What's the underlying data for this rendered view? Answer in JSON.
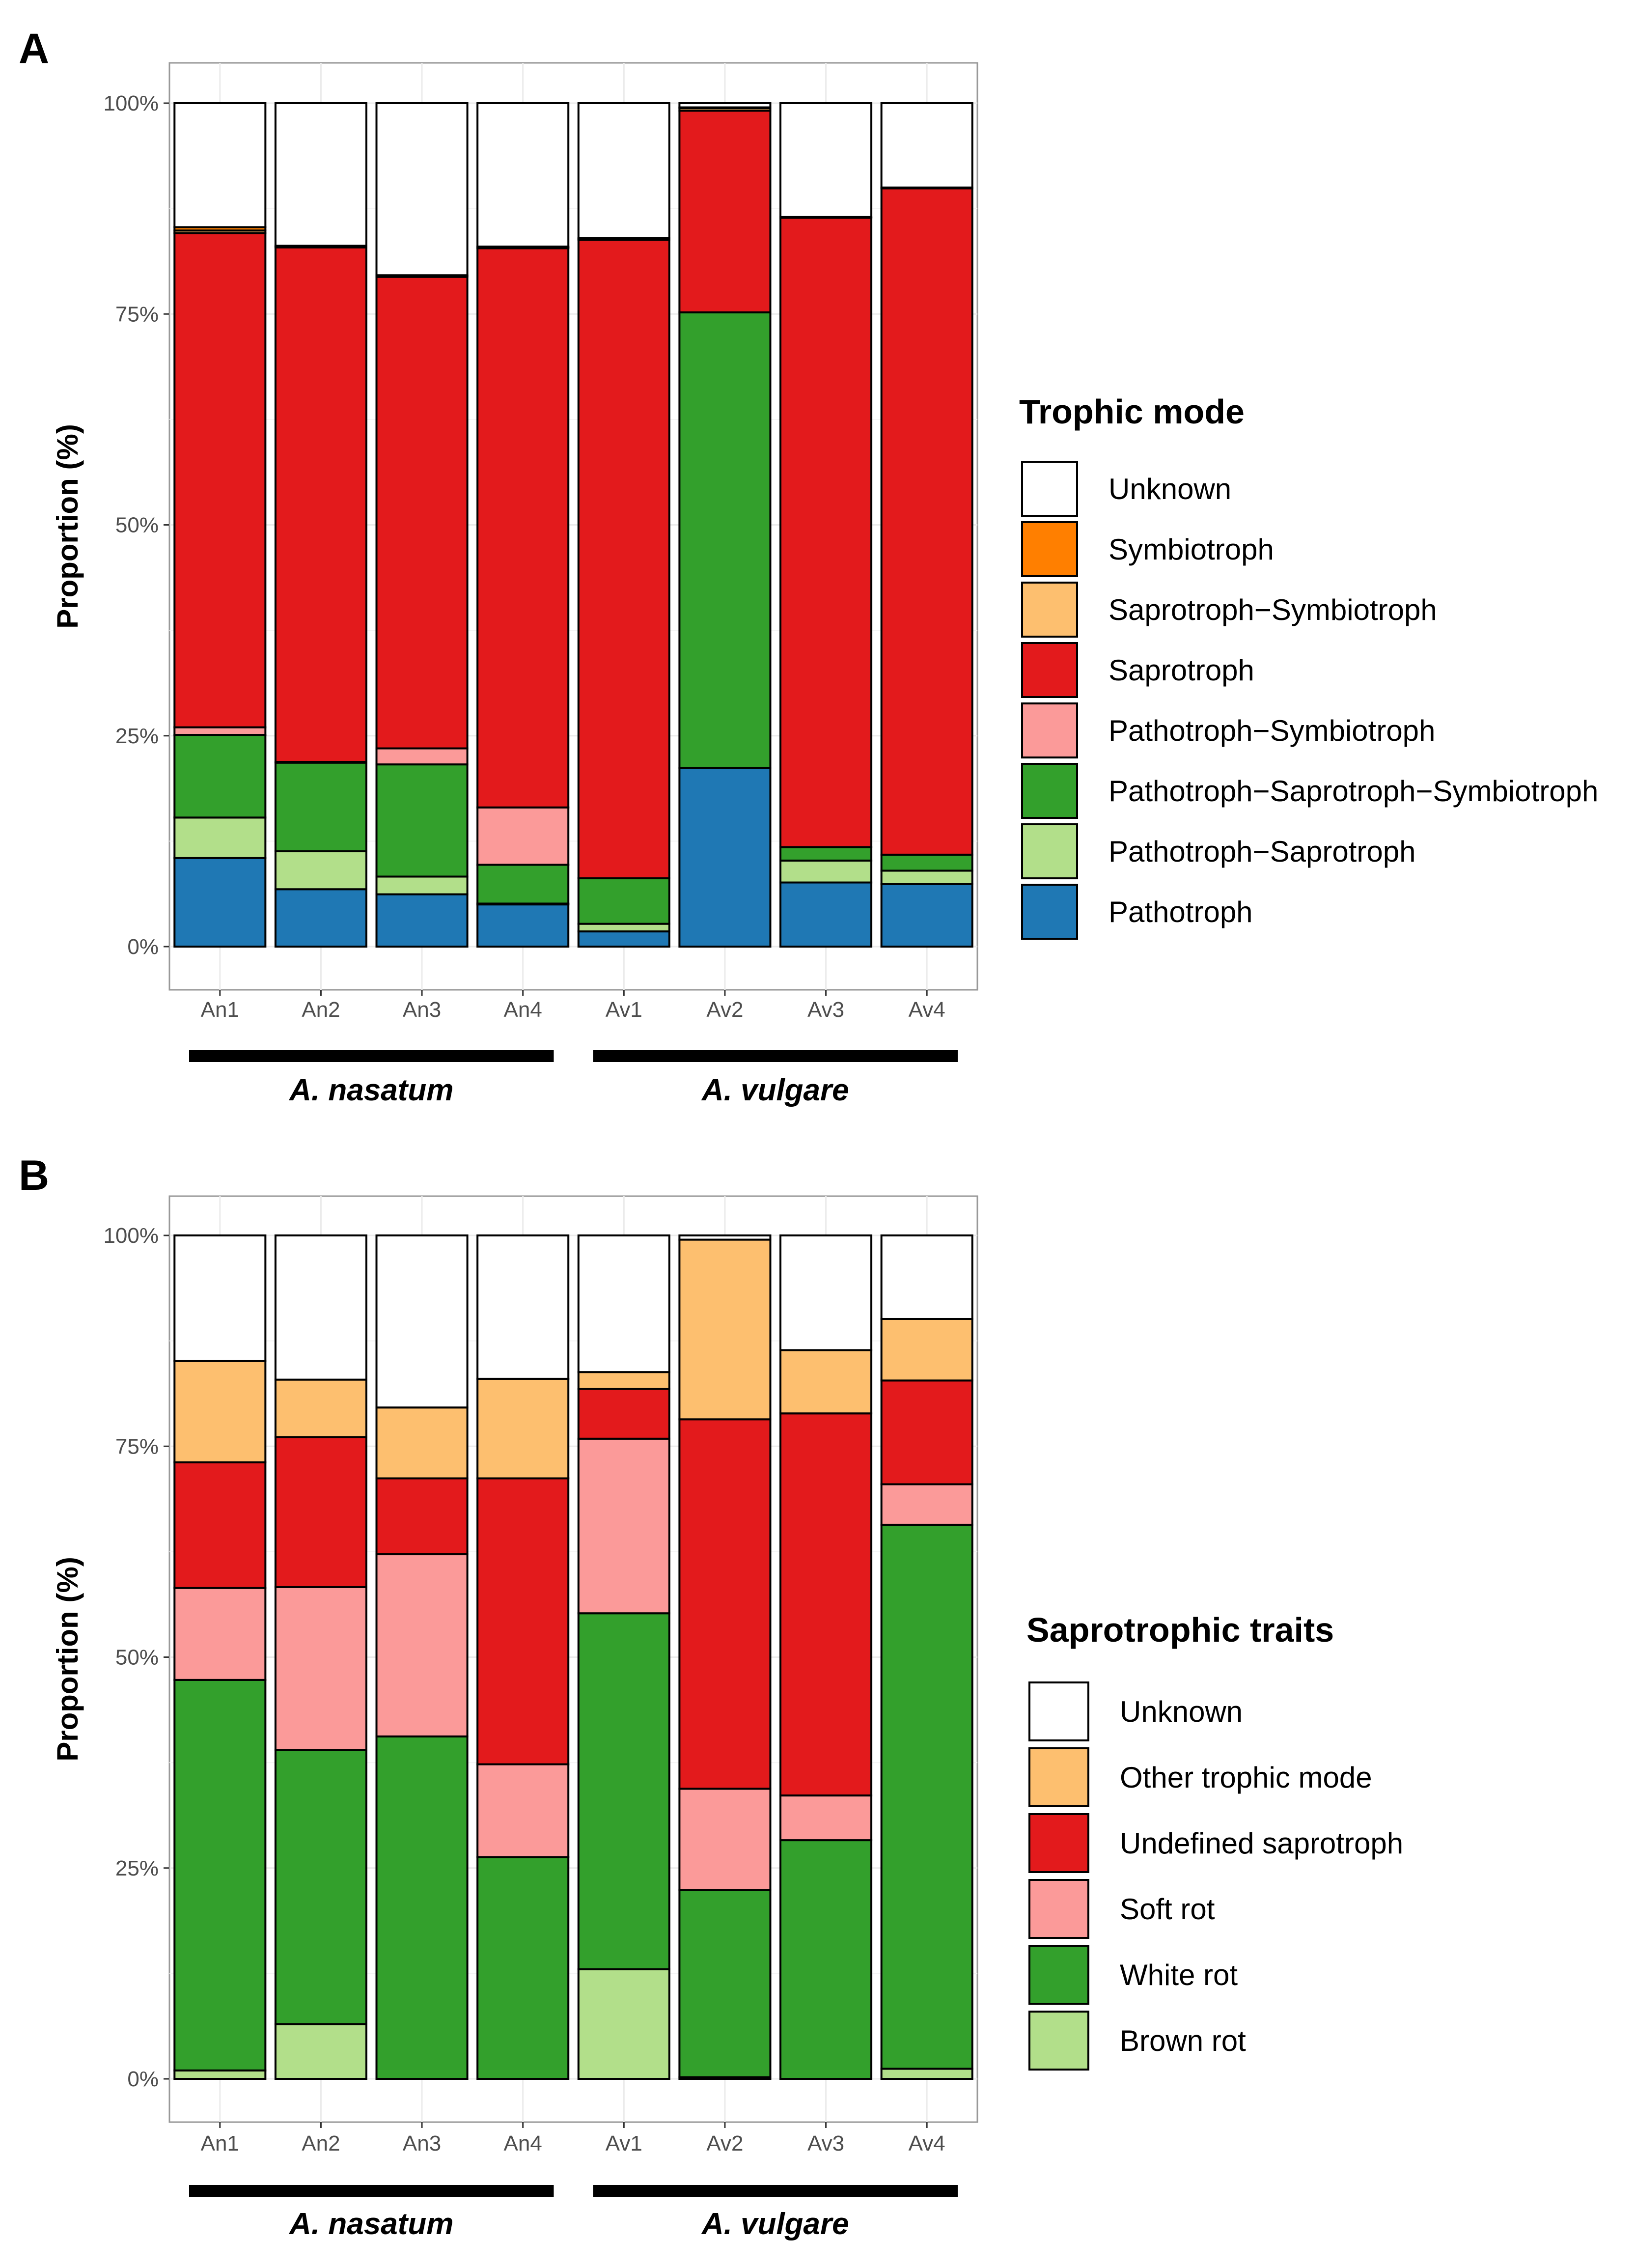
{
  "colors": {
    "Unknown": "#ffffff",
    "Symbiotroph": "#ff7f00",
    "Saprotroph-Symbiotroph": "#fdbf6f",
    "Saprotroph": "#e31a1c",
    "Pathotroph-Symbiotroph": "#fb9a99",
    "Pathotroph-Saprotroph-Symbiotroph": "#33a02c",
    "Pathotroph-Saprotroph": "#b2df8a",
    "Pathotroph": "#1f78b4",
    "Other trophic mode": "#fdbf6f",
    "Undefined saprotroph": "#e31a1c",
    "Soft rot": "#fb9a99",
    "White rot": "#33a02c",
    "Brown rot": "#b2df8a"
  },
  "chart_data": [
    {
      "panel": "A",
      "type": "bar",
      "stacked": true,
      "ylabel": "Proportion (%)",
      "ylim": [
        0,
        100
      ],
      "yticks": [
        "0%",
        "25%",
        "50%",
        "75%",
        "100%"
      ],
      "grid": true,
      "categories": [
        "An1",
        "An2",
        "An3",
        "An4",
        "Av1",
        "Av2",
        "Av3",
        "Av4"
      ],
      "groups": [
        {
          "label": "A. nasatum",
          "categories": [
            "An1",
            "An2",
            "An3",
            "An4"
          ]
        },
        {
          "label": "A. vulgare",
          "categories": [
            "Av1",
            "Av2",
            "Av3",
            "Av4"
          ]
        }
      ],
      "legend_title": "Trophic mode",
      "legend_position": "right",
      "legend": [
        "Unknown",
        "Symbiotroph",
        "Saprotroph−Symbiotroph",
        "Saprotroph",
        "Pathotroph−Symbiotroph",
        "Pathotroph−Saprotroph−Symbiotroph",
        "Pathotroph−Saprotroph",
        "Pathotroph"
      ],
      "series": [
        {
          "name": "Pathotroph",
          "color_key": "Pathotroph",
          "values": [
            10.5,
            6.8,
            6.2,
            5.0,
            1.8,
            21.2,
            7.6,
            7.4
          ]
        },
        {
          "name": "Pathotroph-Saprotroph",
          "color_key": "Pathotroph-Saprotroph",
          "values": [
            4.8,
            4.5,
            2.1,
            0.1,
            0.9,
            0.0,
            2.6,
            1.6
          ]
        },
        {
          "name": "Pathotroph-Saprotroph-Symbiotroph",
          "color_key": "Pathotroph-Saprotroph-Symbiotroph",
          "values": [
            9.8,
            10.5,
            13.3,
            4.6,
            5.4,
            54.0,
            1.6,
            1.9
          ]
        },
        {
          "name": "Pathotroph-Symbiotroph",
          "color_key": "Pathotroph-Symbiotroph",
          "values": [
            0.9,
            0.1,
            1.9,
            6.8,
            0.0,
            0.0,
            0.0,
            0.0
          ]
        },
        {
          "name": "Saprotroph",
          "color_key": "Saprotroph",
          "values": [
            58.6,
            61.0,
            55.9,
            66.3,
            75.7,
            23.9,
            74.6,
            79.0
          ]
        },
        {
          "name": "Saprotroph-Symbiotroph",
          "color_key": "Saprotroph-Symbiotroph",
          "values": [
            0.3,
            0.1,
            0.1,
            0.1,
            0.1,
            0.3,
            0.1,
            0.1
          ]
        },
        {
          "name": "Symbiotroph",
          "color_key": "Symbiotroph",
          "values": [
            0.4,
            0.1,
            0.1,
            0.1,
            0.1,
            0.1,
            0.0,
            0.0
          ]
        },
        {
          "name": "Unknown",
          "color_key": "Unknown",
          "values": [
            14.7,
            16.9,
            20.4,
            17.0,
            16.0,
            0.5,
            13.5,
            10.0
          ]
        }
      ]
    },
    {
      "panel": "B",
      "type": "bar",
      "stacked": true,
      "ylabel": "Proportion (%)",
      "ylim": [
        0,
        100
      ],
      "yticks": [
        "0%",
        "25%",
        "50%",
        "75%",
        "100%"
      ],
      "grid": true,
      "categories": [
        "An1",
        "An2",
        "An3",
        "An4",
        "Av1",
        "Av2",
        "Av3",
        "Av4"
      ],
      "groups": [
        {
          "label": "A. nasatum",
          "categories": [
            "An1",
            "An2",
            "An3",
            "An4"
          ]
        },
        {
          "label": "A. vulgare",
          "categories": [
            "Av1",
            "Av2",
            "Av3",
            "Av4"
          ]
        }
      ],
      "legend_title": "Saprotrophic traits",
      "legend_position": "right",
      "legend": [
        "Unknown",
        "Other trophic mode",
        "Undefined saprotroph",
        "Soft rot",
        "White rot",
        "Brown rot"
      ],
      "series": [
        {
          "name": "Brown rot",
          "color_key": "Brown rot",
          "values": [
            1.0,
            6.5,
            0.0,
            0.0,
            13.0,
            0.2,
            0.0,
            1.2
          ]
        },
        {
          "name": "White rot",
          "color_key": "White rot",
          "values": [
            46.3,
            32.5,
            40.6,
            26.3,
            42.2,
            22.2,
            28.3,
            64.5
          ]
        },
        {
          "name": "Soft rot",
          "color_key": "Soft rot",
          "values": [
            10.9,
            19.3,
            21.6,
            11.0,
            20.7,
            12.0,
            5.3,
            4.8
          ]
        },
        {
          "name": "Undefined saprotroph",
          "color_key": "Undefined saprotroph",
          "values": [
            14.9,
            17.8,
            9.0,
            33.9,
            5.9,
            43.8,
            45.3,
            12.3
          ]
        },
        {
          "name": "Other trophic mode",
          "color_key": "Other trophic mode",
          "values": [
            12.0,
            6.8,
            8.4,
            11.8,
            2.0,
            21.3,
            7.5,
            7.3
          ]
        },
        {
          "name": "Unknown",
          "color_key": "Unknown",
          "values": [
            14.9,
            17.1,
            20.4,
            17.0,
            16.2,
            0.5,
            13.6,
            9.9
          ]
        }
      ]
    }
  ]
}
